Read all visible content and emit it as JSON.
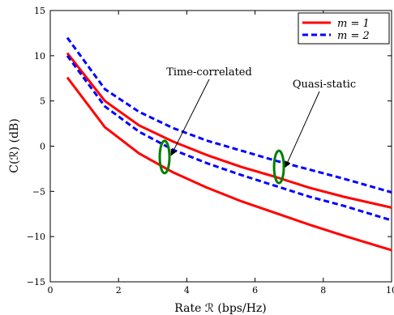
{
  "chart_data": {
    "type": "line",
    "title": "",
    "xlabel": "Rate ℛ (bps/Hz)",
    "ylabel": "C(ℛ) (dB)",
    "xlim": [
      0,
      10
    ],
    "ylim": [
      -15,
      15
    ],
    "xticks": [
      0,
      2,
      4,
      6,
      8,
      10
    ],
    "yticks": [
      -15,
      -10,
      -5,
      0,
      5,
      10,
      15
    ],
    "grid": false,
    "legend_position": "top-right",
    "series": [
      {
        "name": "m = 1",
        "style": "solid",
        "color": "#ff0000",
        "x": [
          0.5,
          1.6,
          2.6,
          3.6,
          4.6,
          5.6,
          6.6,
          7.6,
          8.6,
          10
        ],
        "y": [
          10.3,
          5.0,
          2.3,
          0.5,
          -1.0,
          -2.3,
          -3.4,
          -4.6,
          -5.6,
          -6.8
        ]
      },
      {
        "name": "m = 1",
        "style": "solid",
        "color": "#ff0000",
        "x": [
          0.5,
          1.6,
          2.6,
          3.6,
          4.6,
          5.6,
          6.6,
          7.6,
          8.6,
          10
        ],
        "y": [
          7.6,
          2.1,
          -0.8,
          -2.9,
          -4.6,
          -6.1,
          -7.4,
          -8.7,
          -9.9,
          -11.5
        ]
      },
      {
        "name": "m = 2",
        "style": "dashed",
        "color": "#0000ff",
        "x": [
          0.5,
          1.6,
          2.6,
          3.6,
          4.6,
          5.6,
          6.6,
          7.6,
          8.6,
          10
        ],
        "y": [
          12.0,
          6.3,
          3.8,
          2.0,
          0.6,
          -0.5,
          -1.6,
          -2.6,
          -3.6,
          -5.1
        ]
      },
      {
        "name": "m = 2",
        "style": "dashed",
        "color": "#0000ff",
        "x": [
          0.5,
          1.6,
          2.6,
          3.6,
          4.6,
          5.6,
          6.6,
          7.6,
          8.6,
          10
        ],
        "y": [
          10.0,
          4.4,
          1.6,
          -0.4,
          -1.9,
          -3.2,
          -4.4,
          -5.6,
          -6.6,
          -8.2
        ]
      }
    ],
    "legend": [
      {
        "label": "m = 1",
        "style": "solid",
        "color": "#ff0000"
      },
      {
        "label": "m = 2",
        "style": "dashed",
        "color": "#0000ff"
      }
    ],
    "annotations": [
      {
        "text": "Time-correlated",
        "points_to": {
          "x": 3.4,
          "y": -1.0
        }
      },
      {
        "text": "Quasi-static",
        "points_to": {
          "x": 6.7,
          "y": -2.3
        }
      }
    ],
    "ellipses": [
      {
        "center": {
          "x": 3.35,
          "y": -1.2
        },
        "color": "#008000"
      },
      {
        "center": {
          "x": 6.7,
          "y": -2.3
        },
        "color": "#008000"
      }
    ]
  }
}
